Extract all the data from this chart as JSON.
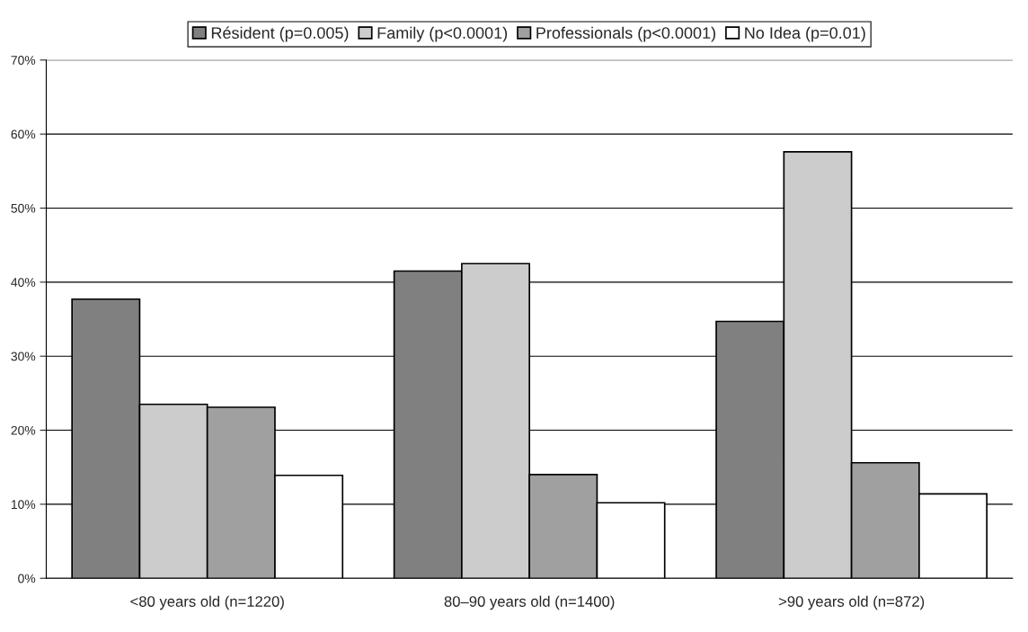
{
  "chart_data": {
    "type": "bar",
    "categories": [
      "<80 years old (n=1220)",
      "80–90 years old (n=1400)",
      ">90 years old (n=872)"
    ],
    "series": [
      {
        "name": "Résident (p=0.005)",
        "color": "#808080",
        "values": [
          37.7,
          41.5,
          34.7
        ]
      },
      {
        "name": "Family (p<0.0001)",
        "color": "#cccccc",
        "values": [
          23.5,
          42.5,
          57.6
        ]
      },
      {
        "name": "Professionals (p<0.0001)",
        "color": "#a0a0a0",
        "values": [
          23.1,
          14.0,
          15.6
        ]
      },
      {
        "name": "No Idea (p=0.01)",
        "color": "#ffffff",
        "values": [
          13.9,
          10.2,
          11.4
        ]
      }
    ],
    "ylim": [
      0,
      70
    ],
    "yticks": [
      {
        "value": 0,
        "label": "0%"
      },
      {
        "value": 10,
        "label": "10%"
      },
      {
        "value": 20,
        "label": "20%"
      },
      {
        "value": 30,
        "label": "30%"
      },
      {
        "value": 40,
        "label": "40%"
      },
      {
        "value": 50,
        "label": "50%"
      },
      {
        "value": 60,
        "label": "60%"
      },
      {
        "value": 70,
        "label": "70%"
      }
    ],
    "grid": "y",
    "legend": "top"
  }
}
